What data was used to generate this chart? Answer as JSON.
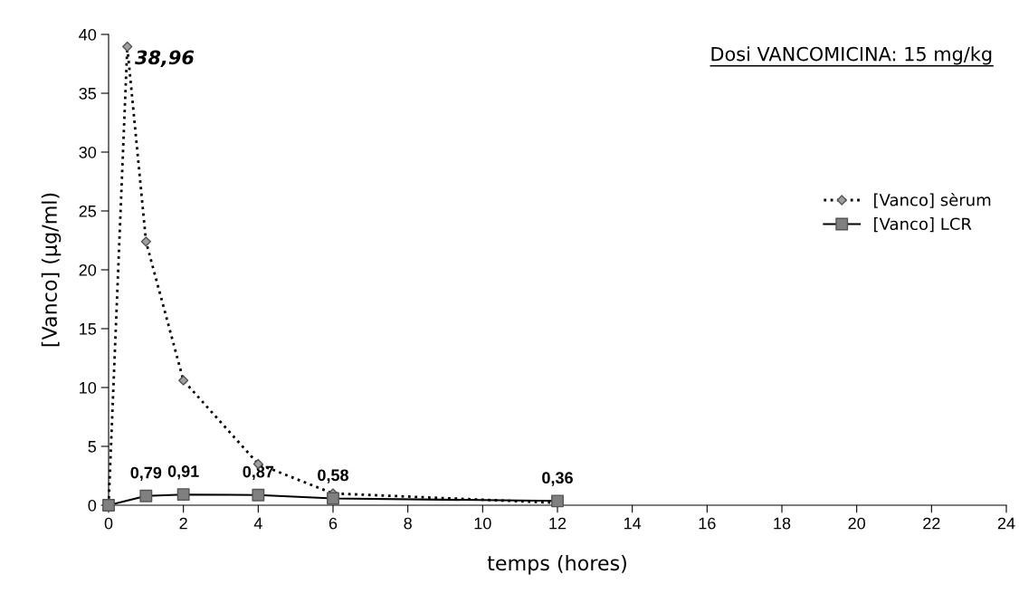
{
  "chart_data": {
    "type": "line",
    "title": "Dosi VANCOMICINA: 15 mg/kg",
    "xlabel": "temps (hores)",
    "ylabel": "[Vanco] (µg/ml)",
    "xlim": [
      0,
      24
    ],
    "xticks": [
      0,
      2,
      4,
      6,
      8,
      10,
      12,
      14,
      16,
      18,
      20,
      22,
      24
    ],
    "ylim": [
      0,
      40
    ],
    "yticks": [
      0,
      5,
      10,
      15,
      20,
      25,
      30,
      35,
      40
    ],
    "grid": false,
    "legend": "right",
    "series": [
      {
        "name": "[Vanco] sèrum",
        "color": "#a0a0a0",
        "marker": "diamond",
        "line_style": "dotted",
        "x": [
          0,
          0.5,
          1,
          2,
          4,
          6,
          12
        ],
        "values": [
          0,
          38.96,
          22.4,
          10.6,
          3.5,
          1.0,
          0.2
        ],
        "value_labels": [
          null,
          "38,96",
          null,
          null,
          null,
          null,
          null
        ]
      },
      {
        "name": "[Vanco] LCR",
        "color": "#808080",
        "marker": "square",
        "line_style": "solid",
        "x": [
          0,
          1,
          2,
          4,
          6,
          12
        ],
        "values": [
          0,
          0.79,
          0.91,
          0.87,
          0.58,
          0.36
        ],
        "value_labels": [
          null,
          "0,79",
          "0,91",
          "0,87",
          "0,58",
          "0,36"
        ]
      }
    ]
  }
}
